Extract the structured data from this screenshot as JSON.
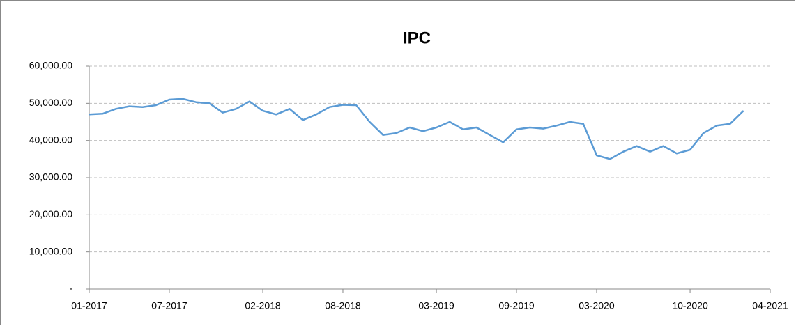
{
  "chart_data": {
    "type": "line",
    "title": "IPC",
    "x": [
      "01-2017",
      "02-2017",
      "03-2017",
      "04-2017",
      "05-2017",
      "06-2017",
      "07-2017",
      "08-2017",
      "09-2017",
      "10-2017",
      "11-2017",
      "12-2017",
      "01-2018",
      "02-2018",
      "03-2018",
      "04-2018",
      "05-2018",
      "06-2018",
      "07-2018",
      "08-2018",
      "09-2018",
      "10-2018",
      "11-2018",
      "12-2018",
      "01-2019",
      "02-2019",
      "03-2019",
      "04-2019",
      "05-2019",
      "06-2019",
      "07-2019",
      "08-2019",
      "09-2019",
      "10-2019",
      "11-2019",
      "12-2019",
      "01-2020",
      "02-2020",
      "03-2020",
      "04-2020",
      "05-2020",
      "06-2020",
      "07-2020",
      "08-2020",
      "09-2020",
      "10-2020",
      "11-2020",
      "12-2020",
      "01-2021",
      "02-2021"
    ],
    "series": [
      {
        "name": "IPC",
        "color": "#5b9bd5",
        "values": [
          47000,
          47200,
          48500,
          49200,
          49000,
          49500,
          51000,
          51200,
          50300,
          50000,
          47500,
          48500,
          50500,
          48000,
          47000,
          48500,
          45500,
          47000,
          49000,
          49600,
          49500,
          45000,
          41500,
          42000,
          43500,
          42500,
          43500,
          45000,
          43000,
          43500,
          41500,
          39500,
          43000,
          43500,
          43200,
          44000,
          45000,
          44500,
          36000,
          35000,
          37000,
          38500,
          37000,
          38500,
          36500,
          37500,
          42000,
          44000,
          44500,
          48000
        ]
      }
    ],
    "xlim": [
      "01-2017",
      "04-2021"
    ],
    "xticks": [
      "01-2017",
      "07-2017",
      "02-2018",
      "08-2018",
      "03-2019",
      "09-2019",
      "03-2020",
      "10-2020",
      "04-2021"
    ],
    "ylim": [
      0,
      60000
    ],
    "yticks": [
      {
        "value": 0,
        "label": "-"
      },
      {
        "value": 10000,
        "label": "10,000.00"
      },
      {
        "value": 20000,
        "label": "20,000.00"
      },
      {
        "value": 30000,
        "label": "30,000.00"
      },
      {
        "value": 40000,
        "label": "40,000.00"
      },
      {
        "value": 50000,
        "label": "50,000.00"
      },
      {
        "value": 60000,
        "label": "60,000.00"
      }
    ],
    "grid": true
  }
}
